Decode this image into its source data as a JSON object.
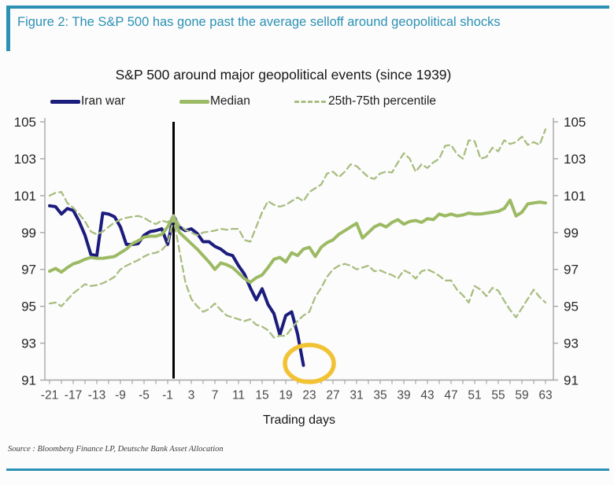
{
  "figure": {
    "caption": "Figure 2: The S&P 500 has gone past the average selloff around geopolitical shocks",
    "source": "Source : Bloomberg Finance LP, Deutsche Bank Asset Allocation"
  },
  "colors": {
    "accent_teal": "#2c91b4",
    "iran_war": "#1c1c7d",
    "median": "#9cba63",
    "percentile": "#a9bd80",
    "event_line": "#000000",
    "highlight_circle": "#f1c233",
    "axis_line": "#a6a6a6",
    "y_label": "#262626",
    "x_label": "#4a4a4a"
  },
  "legend": {
    "items": [
      {
        "label": "Iran war",
        "swatch": "navy-solid-line"
      },
      {
        "label": "Median",
        "swatch": "green-solid-line"
      },
      {
        "label": "25th-75th percentile",
        "swatch": "green-dashed-line"
      }
    ]
  },
  "chart_data": {
    "type": "line",
    "title": "S&P 500 around major geopolitical events (since 1939)",
    "xlabel": "Trading days",
    "ylabel": "",
    "ylim": [
      91,
      105
    ],
    "xlim": [
      -21.8,
      64.3
    ],
    "grid": false,
    "legend_position": "top",
    "y_ticks": [
      91,
      93,
      95,
      97,
      99,
      101,
      103,
      105
    ],
    "x_ticks": [
      -21,
      -17,
      -13,
      -9,
      -5,
      -1,
      3,
      7,
      11,
      15,
      19,
      23,
      27,
      31,
      35,
      39,
      43,
      47,
      51,
      55,
      59,
      63
    ],
    "minor_x_tick_step": 2,
    "event_line_x": 0,
    "annotation": {
      "shape": "ellipse",
      "x_day": 23,
      "y_value": 91.9,
      "meaning": "highlight of latest Iran-war selloff low"
    },
    "x": [
      -21,
      -20,
      -19,
      -18,
      -17,
      -16,
      -15,
      -14,
      -13,
      -12,
      -11,
      -10,
      -9,
      -8,
      -7,
      -6,
      -5,
      -4,
      -3,
      -2,
      -1,
      0,
      1,
      2,
      3,
      4,
      5,
      6,
      7,
      8,
      9,
      10,
      11,
      12,
      13,
      14,
      15,
      16,
      17,
      18,
      19,
      20,
      21,
      22,
      23,
      24,
      25,
      26,
      27,
      28,
      29,
      30,
      31,
      32,
      33,
      34,
      35,
      36,
      37,
      38,
      39,
      40,
      41,
      42,
      43,
      44,
      45,
      46,
      47,
      48,
      49,
      50,
      51,
      52,
      53,
      54,
      55,
      56,
      57,
      58,
      59,
      60,
      61,
      62,
      63
    ],
    "series": [
      {
        "name": "Iran war",
        "style": "solid",
        "width": 4,
        "values": [
          100.45,
          100.4,
          100.0,
          100.3,
          100.2,
          99.6,
          98.85,
          97.8,
          97.75,
          100.05,
          100.0,
          99.85,
          99.3,
          98.35,
          98.35,
          98.4,
          98.85,
          99.05,
          99.1,
          99.2,
          98.35,
          99.9,
          99.3,
          99.1,
          99.2,
          98.95,
          98.5,
          98.5,
          98.25,
          98.1,
          97.85,
          97.75,
          97.2,
          96.75,
          96.0,
          95.35,
          95.95,
          95.1,
          94.6,
          93.45,
          94.5,
          94.7,
          93.5,
          91.8,
          null,
          null,
          null,
          null,
          null,
          null,
          null,
          null,
          null,
          null,
          null,
          null,
          null,
          null,
          null,
          null,
          null,
          null,
          null,
          null,
          null,
          null,
          null,
          null,
          null,
          null,
          null,
          null,
          null,
          null,
          null,
          null,
          null,
          null,
          null,
          null,
          null,
          null,
          null,
          null,
          null
        ]
      },
      {
        "name": "Median",
        "style": "solid",
        "width": 4,
        "values": [
          96.9,
          97.05,
          96.85,
          97.1,
          97.3,
          97.4,
          97.55,
          97.65,
          97.6,
          97.6,
          97.65,
          97.7,
          97.9,
          98.1,
          98.4,
          98.55,
          98.75,
          98.8,
          98.8,
          98.9,
          99.3,
          99.9,
          99.0,
          98.7,
          98.4,
          98.1,
          97.75,
          97.4,
          97.0,
          97.35,
          97.25,
          97.1,
          96.8,
          96.5,
          96.3,
          96.55,
          96.7,
          97.1,
          97.55,
          97.65,
          97.4,
          97.9,
          97.75,
          98.1,
          98.2,
          97.7,
          98.2,
          98.45,
          98.6,
          98.9,
          99.1,
          99.3,
          99.5,
          98.7,
          99.0,
          99.3,
          99.45,
          99.3,
          99.55,
          99.7,
          99.45,
          99.6,
          99.65,
          99.55,
          99.75,
          99.7,
          100.0,
          99.9,
          100.0,
          99.9,
          99.95,
          100.05,
          100.0,
          100.0,
          100.05,
          100.1,
          100.15,
          100.3,
          100.75,
          99.9,
          100.1,
          100.55,
          100.6,
          100.65,
          100.6
        ]
      },
      {
        "name": "75th percentile",
        "style": "dashed",
        "width": 2.3,
        "values": [
          101.0,
          101.15,
          101.2,
          100.6,
          100.35,
          100.0,
          99.6,
          99.05,
          98.9,
          99.05,
          99.3,
          99.55,
          99.7,
          99.8,
          99.85,
          99.9,
          99.8,
          99.6,
          99.45,
          99.65,
          99.55,
          99.95,
          99.4,
          99.15,
          99.0,
          98.85,
          99.0,
          99.05,
          99.1,
          99.2,
          99.15,
          99.2,
          99.2,
          98.6,
          98.5,
          99.3,
          100.1,
          100.7,
          100.5,
          100.4,
          100.5,
          100.7,
          100.9,
          100.7,
          101.2,
          101.4,
          101.6,
          102.2,
          102.3,
          102.0,
          102.3,
          102.7,
          102.6,
          102.3,
          102.0,
          101.9,
          102.2,
          102.3,
          102.25,
          102.8,
          103.3,
          103.0,
          102.3,
          102.7,
          102.5,
          102.8,
          103.0,
          103.7,
          103.75,
          103.25,
          103.0,
          104.0,
          103.95,
          103.0,
          103.1,
          103.6,
          103.4,
          104.0,
          103.8,
          103.9,
          104.2,
          103.75,
          103.9,
          103.75,
          104.6
        ]
      },
      {
        "name": "25th percentile",
        "style": "dashed",
        "width": 2.3,
        "values": [
          95.15,
          95.2,
          95.0,
          95.35,
          95.7,
          95.95,
          96.2,
          96.1,
          96.15,
          96.25,
          96.4,
          96.6,
          97.0,
          97.2,
          97.35,
          97.5,
          97.7,
          97.85,
          97.9,
          98.05,
          98.4,
          99.75,
          98.0,
          96.3,
          95.4,
          95.0,
          94.7,
          94.85,
          95.15,
          94.8,
          94.5,
          94.4,
          94.3,
          94.2,
          94.3,
          94.0,
          93.9,
          93.7,
          93.3,
          93.4,
          93.4,
          93.8,
          94.2,
          94.5,
          94.7,
          95.5,
          96.0,
          96.6,
          97.0,
          97.2,
          97.3,
          97.2,
          97.0,
          97.1,
          97.2,
          96.9,
          96.95,
          96.8,
          96.7,
          96.5,
          96.95,
          96.8,
          96.5,
          96.9,
          97.0,
          96.85,
          96.65,
          96.4,
          96.4,
          95.9,
          95.6,
          95.2,
          96.1,
          95.9,
          95.55,
          96.0,
          95.85,
          95.3,
          94.8,
          94.4,
          94.9,
          95.4,
          95.9,
          95.5,
          95.2
        ]
      }
    ]
  }
}
